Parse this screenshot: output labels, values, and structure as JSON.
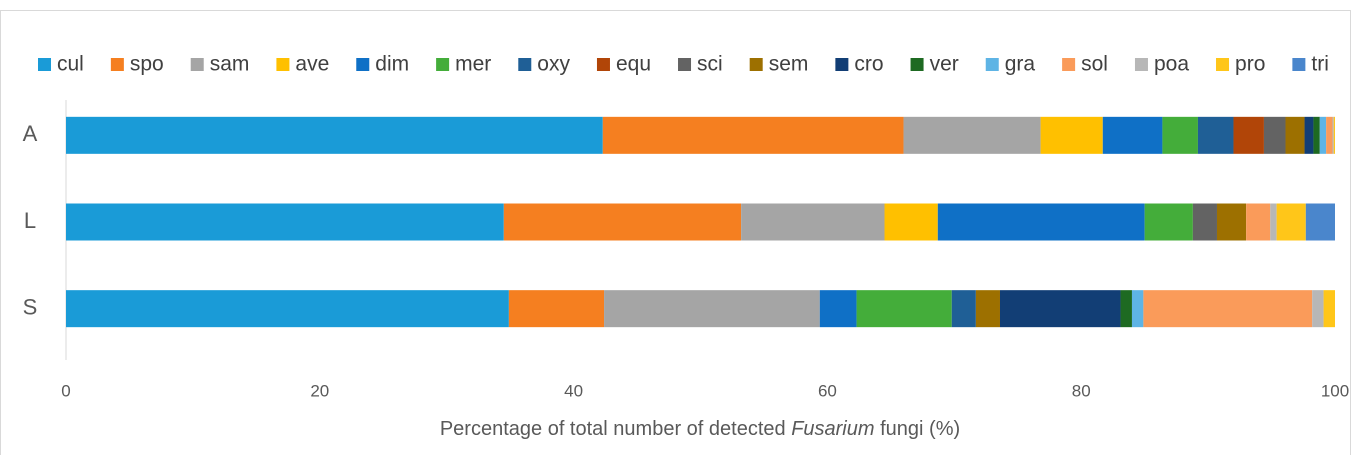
{
  "chart_data": {
    "type": "stacked-barh",
    "categories": [
      "A",
      "L",
      "S"
    ],
    "series": [
      {
        "name": "cul",
        "color": "#1a9bd7",
        "values": [
          42.3,
          34.5,
          34.9
        ]
      },
      {
        "name": "spo",
        "color": "#f57f20",
        "values": [
          23.7,
          18.7,
          7.5
        ]
      },
      {
        "name": "sam",
        "color": "#a5a5a5",
        "values": [
          10.8,
          11.3,
          17.0
        ]
      },
      {
        "name": "ave",
        "color": "#ffc000",
        "values": [
          4.9,
          4.2,
          0
        ]
      },
      {
        "name": "dim",
        "color": "#0f70c6",
        "values": [
          4.7,
          16.3,
          2.9
        ]
      },
      {
        "name": "mer",
        "color": "#44ad3a",
        "values": [
          2.8,
          3.8,
          7.5
        ]
      },
      {
        "name": "oxy",
        "color": "#1f5f96",
        "values": [
          2.8,
          0,
          1.9
        ]
      },
      {
        "name": "equ",
        "color": "#b14508",
        "values": [
          2.4,
          0,
          0
        ]
      },
      {
        "name": "sci",
        "color": "#636363",
        "values": [
          1.7,
          1.9,
          0
        ]
      },
      {
        "name": "sem",
        "color": "#9d7000",
        "values": [
          1.5,
          2.3,
          1.9
        ]
      },
      {
        "name": "cro",
        "color": "#123e75",
        "values": [
          0.7,
          0,
          9.5
        ]
      },
      {
        "name": "ver",
        "color": "#1e6a22",
        "values": [
          0.5,
          0,
          0.9
        ]
      },
      {
        "name": "gra",
        "color": "#5eb4e5",
        "values": [
          0.5,
          0,
          0.9
        ]
      },
      {
        "name": "sol",
        "color": "#fa9b5a",
        "values": [
          0.5,
          1.9,
          13.3
        ]
      },
      {
        "name": "poa",
        "color": "#b7b7b7",
        "values": [
          0.1,
          0.5,
          0.9
        ]
      },
      {
        "name": "pro",
        "color": "#ffc619",
        "values": [
          0.1,
          2.3,
          0.9
        ]
      },
      {
        "name": "tri",
        "color": "#4a86cc",
        "values": [
          0,
          2.3,
          0
        ]
      }
    ],
    "xlim": [
      0,
      100
    ],
    "xticks": [
      0,
      20,
      40,
      60,
      80,
      100
    ],
    "xlabel": [
      "Percentage of total number of detected ",
      "Fusarium",
      " fungi (%)"
    ],
    "legend": "top"
  }
}
